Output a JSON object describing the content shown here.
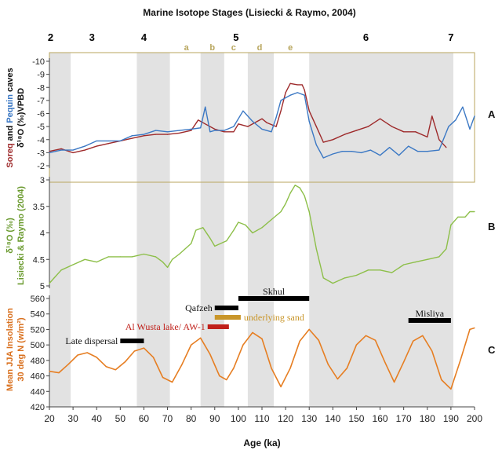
{
  "chart_data": {
    "type": "line",
    "title": "Marine Isotope Stages (Lisiecki & Raymo, 2004)",
    "xlabel": "Age (ka)",
    "xlim": [
      20,
      200
    ],
    "x_ticks": [
      20,
      30,
      40,
      50,
      60,
      70,
      80,
      90,
      100,
      110,
      120,
      130,
      140,
      150,
      160,
      170,
      180,
      190,
      200
    ],
    "stage_labels": [
      {
        "label": "2",
        "x": 20.5,
        "color": "#000000"
      },
      {
        "label": "3",
        "x": 38,
        "color": "#000000"
      },
      {
        "label": "4",
        "x": 60,
        "color": "#000000"
      },
      {
        "label": "5",
        "x": 99,
        "color": "#000000"
      },
      {
        "label": "6",
        "x": 154,
        "color": "#000000"
      },
      {
        "label": "7",
        "x": 190,
        "color": "#000000"
      }
    ],
    "substage_labels": [
      {
        "label": "a",
        "x": 78,
        "color": "#b8a65e"
      },
      {
        "label": "b",
        "x": 89,
        "color": "#b8a65e"
      },
      {
        "label": "c",
        "x": 98,
        "color": "#b8a65e"
      },
      {
        "label": "d",
        "x": 109,
        "color": "#b8a65e"
      },
      {
        "label": "e",
        "x": 122,
        "color": "#b8a65e"
      }
    ],
    "shaded_bands": [
      [
        20,
        29
      ],
      [
        57,
        71
      ],
      [
        84,
        94
      ],
      [
        104,
        115
      ],
      [
        130,
        191
      ]
    ],
    "panels": {
      "A": {
        "label": "A",
        "ylabel_parts": {
          "soreq": "Soreq",
          "and": " and ",
          "pequin": "Pequin",
          "caves": " caves",
          "delta": "δ¹⁸O (‰)VPBD"
        },
        "ylim": [
          -10,
          -2
        ],
        "y_inverted": true,
        "y_ticks": [
          -10,
          -9,
          -8,
          -7,
          -6,
          -5,
          -4,
          -3,
          -2
        ],
        "series": [
          {
            "name": "Soreq",
            "color": "#9e2a2b",
            "x": [
              20,
              25,
              30,
              35,
              40,
              45,
              50,
              55,
              60,
              65,
              70,
              75,
              80,
              83,
              86,
              90,
              94,
              98,
              100,
              104,
              108,
              110,
              112,
              116,
              118,
              120,
              122,
              125,
              127,
              128,
              130,
              133,
              136,
              140,
              145,
              150,
              155,
              160,
              165,
              170,
              175,
              180,
              182,
              185,
              188
            ],
            "y": [
              -3.1,
              -3.3,
              -3.0,
              -3.2,
              -3.5,
              -3.7,
              -3.9,
              -4.1,
              -4.3,
              -4.4,
              -4.4,
              -4.5,
              -4.7,
              -5.5,
              -5.2,
              -4.8,
              -4.6,
              -4.6,
              -5.2,
              -5.0,
              -5.4,
              -5.6,
              -5.3,
              -5.0,
              -6.2,
              -7.6,
              -8.3,
              -8.2,
              -8.2,
              -7.8,
              -6.2,
              -5.0,
              -3.8,
              -4.0,
              -4.4,
              -4.7,
              -5.0,
              -5.6,
              -5.0,
              -4.6,
              -4.6,
              -4.2,
              -5.8,
              -4.0,
              -3.4
            ]
          },
          {
            "name": "Pequin",
            "color": "#3b78c4",
            "x": [
              20,
              25,
              30,
              35,
              40,
              45,
              50,
              55,
              60,
              65,
              70,
              75,
              80,
              84,
              86,
              88,
              90,
              94,
              98,
              102,
              106,
              110,
              114,
              116,
              118,
              120,
              122,
              125,
              128,
              130,
              133,
              136,
              140,
              144,
              148,
              152,
              156,
              160,
              164,
              168,
              172,
              176,
              180,
              185,
              189,
              192,
              195,
              198,
              200
            ],
            "y": [
              -3.0,
              -3.2,
              -3.2,
              -3.5,
              -3.9,
              -3.9,
              -3.9,
              -4.3,
              -4.4,
              -4.7,
              -4.6,
              -4.7,
              -4.8,
              -4.9,
              -6.5,
              -4.6,
              -4.7,
              -4.7,
              -5.0,
              -6.2,
              -5.4,
              -4.8,
              -4.6,
              -5.7,
              -7.0,
              -7.2,
              -7.4,
              -7.6,
              -7.4,
              -5.4,
              -3.6,
              -2.6,
              -2.9,
              -3.1,
              -3.1,
              -3.0,
              -3.2,
              -2.8,
              -3.4,
              -2.8,
              -3.5,
              -3.1,
              -3.1,
              -3.2,
              -5.0,
              -5.5,
              -6.5,
              -4.8,
              -5.8
            ]
          }
        ]
      },
      "B": {
        "label": "B",
        "ylabel_parts": {
          "delta": "δ¹⁸O (‰)",
          "source": "Lisiecki & Raymo (2004)"
        },
        "ylim": [
          3,
          5
        ],
        "y_inverted": true,
        "y_ticks": [
          "3",
          "3.5",
          "4",
          "4.5",
          "5"
        ],
        "y_tick_values": [
          3,
          3.5,
          4,
          4.5,
          5
        ],
        "series": [
          {
            "name": "Lisiecki & Raymo (2004)",
            "color": "#8dbf49",
            "x": [
              20,
              22,
              25,
              30,
              35,
              40,
              45,
              50,
              55,
              60,
              65,
              68,
              70,
              72,
              75,
              80,
              82,
              85,
              88,
              90,
              95,
              98,
              100,
              103,
              106,
              110,
              114,
              118,
              120,
              122,
              124,
              126,
              128,
              130,
              133,
              136,
              140,
              145,
              150,
              155,
              160,
              165,
              170,
              175,
              180,
              185,
              188,
              190,
              193,
              196,
              198,
              200
            ],
            "y": [
              4.95,
              4.85,
              4.7,
              4.6,
              4.5,
              4.55,
              4.45,
              4.45,
              4.45,
              4.4,
              4.45,
              4.55,
              4.65,
              4.5,
              4.4,
              4.2,
              3.95,
              3.9,
              4.1,
              4.25,
              4.15,
              3.95,
              3.8,
              3.85,
              4.0,
              3.9,
              3.75,
              3.6,
              3.45,
              3.25,
              3.1,
              3.15,
              3.3,
              3.6,
              4.3,
              4.85,
              4.95,
              4.85,
              4.8,
              4.7,
              4.7,
              4.75,
              4.6,
              4.55,
              4.5,
              4.45,
              4.3,
              3.85,
              3.7,
              3.7,
              3.6,
              3.6
            ]
          }
        ]
      },
      "C": {
        "label": "C",
        "ylabel_parts": {
          "line1": "Mean JJA Insolation",
          "line2": "30 deg N (w/m²)"
        },
        "ylim": [
          420,
          560
        ],
        "y_ticks": [
          420,
          440,
          460,
          480,
          500,
          520,
          540,
          560
        ],
        "series": [
          {
            "name": "Mean JJA Insolation",
            "color": "#e67e22",
            "x": [
              20,
              24,
              28,
              32,
              36,
              40,
              44,
              48,
              52,
              56,
              60,
              64,
              68,
              72,
              76,
              80,
              84,
              88,
              92,
              95,
              98,
              102,
              106,
              110,
              114,
              118,
              122,
              126,
              130,
              134,
              138,
              142,
              146,
              150,
              154,
              158,
              162,
              166,
              170,
              174,
              178,
              182,
              186,
              190,
              194,
              198,
              200
            ],
            "y": [
              466,
              464,
              475,
              487,
              490,
              484,
              472,
              468,
              478,
              492,
              496,
              484,
              458,
              452,
              474,
              500,
              509,
              488,
              460,
              455,
              470,
              500,
              516,
              508,
              470,
              446,
              470,
              505,
              520,
              506,
              475,
              456,
              470,
              500,
              512,
              506,
              478,
              452,
              478,
              505,
              512,
              492,
              455,
              443,
              480,
              520,
              522
            ]
          }
        ],
        "events": [
          {
            "label": "Skhul",
            "x1": 100,
            "x2": 130,
            "color": "#000000"
          },
          {
            "label": "Qafzeh",
            "x1": 90,
            "x2": 100,
            "color": "#000000"
          },
          {
            "label": "underlying sand",
            "x1": 90,
            "x2": 101,
            "color": "#c9962a"
          },
          {
            "label": "Al Wusta lake/ AW-1",
            "x1": 87,
            "x2": 96,
            "color": "#c0201a"
          },
          {
            "label": "Late dispersal",
            "x1": 50,
            "x2": 60,
            "color": "#000000"
          },
          {
            "label": "Misliya",
            "x1": 172,
            "x2": 190,
            "color": "#000000"
          }
        ]
      }
    }
  }
}
